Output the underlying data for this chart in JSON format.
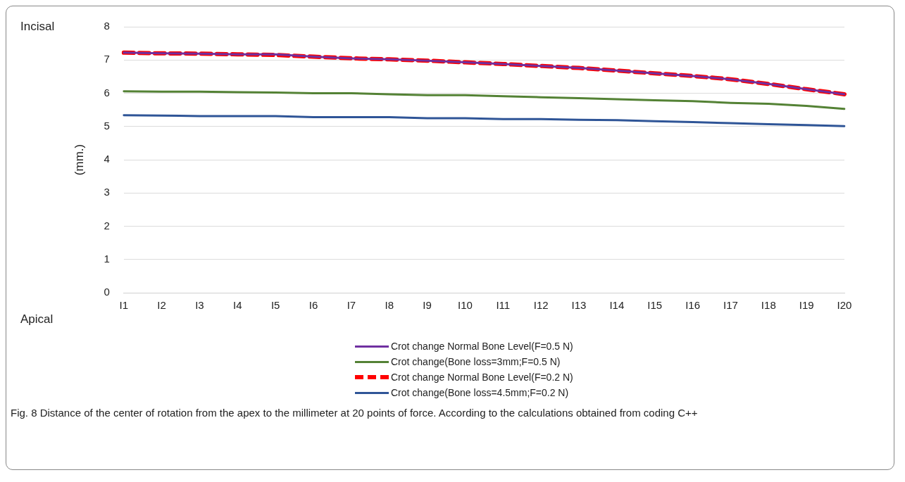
{
  "chart_data": {
    "type": "line",
    "ylabel": "(mm.)",
    "categories": [
      "I1",
      "I2",
      "I3",
      "I4",
      "I5",
      "I6",
      "I7",
      "I8",
      "I9",
      "I10",
      "I11",
      "I12",
      "I13",
      "I14",
      "I15",
      "I16",
      "I17",
      "I18",
      "I19",
      "I20"
    ],
    "ylim": [
      0,
      8
    ],
    "yticks": [
      0,
      1,
      2,
      3,
      4,
      5,
      6,
      7,
      8
    ],
    "grid": "y",
    "legend": "bottom",
    "marker": "none",
    "series": [
      {
        "name": "Crot change Normal Bone Level(F=0.5 N)",
        "color": "#7030a0",
        "line_style": "solid",
        "values": [
          7.22,
          7.2,
          7.19,
          7.17,
          7.17,
          7.1,
          7.05,
          7.02,
          6.98,
          6.93,
          6.88,
          6.82,
          6.76,
          6.68,
          6.6,
          6.52,
          6.42,
          6.28,
          6.12,
          5.97
        ]
      },
      {
        "name": "Crot change(Bone loss=3mm;F=0.5 N)",
        "color": "#548235",
        "line_style": "solid",
        "values": [
          6.06,
          6.05,
          6.05,
          6.03,
          6.02,
          6.0,
          6.0,
          5.97,
          5.94,
          5.94,
          5.91,
          5.88,
          5.85,
          5.82,
          5.79,
          5.76,
          5.71,
          5.68,
          5.62,
          5.53
        ]
      },
      {
        "name": "Crot change Normal Bone Level(F=0.2 N)",
        "color": "#ff0000",
        "line_style": "dashed",
        "values": [
          7.22,
          7.2,
          7.19,
          7.17,
          7.15,
          7.1,
          7.05,
          7.02,
          6.98,
          6.93,
          6.88,
          6.82,
          6.76,
          6.68,
          6.6,
          6.52,
          6.42,
          6.28,
          6.12,
          5.97
        ]
      },
      {
        "name": "Crot change(Bone loss=4.5mm;F=0.2 N)",
        "color": "#2f5597",
        "line_style": "solid",
        "values": [
          5.34,
          5.33,
          5.31,
          5.31,
          5.31,
          5.28,
          5.28,
          5.28,
          5.25,
          5.25,
          5.22,
          5.22,
          5.2,
          5.19,
          5.16,
          5.13,
          5.1,
          5.07,
          5.04,
          5.01
        ]
      }
    ],
    "annotations": [
      "Incisal",
      "Apical",
      "Fig. 8  Distance of the center of rotation from the apex to the millimeter at 20 points of force. According to the calculations obtained from coding C++"
    ]
  }
}
